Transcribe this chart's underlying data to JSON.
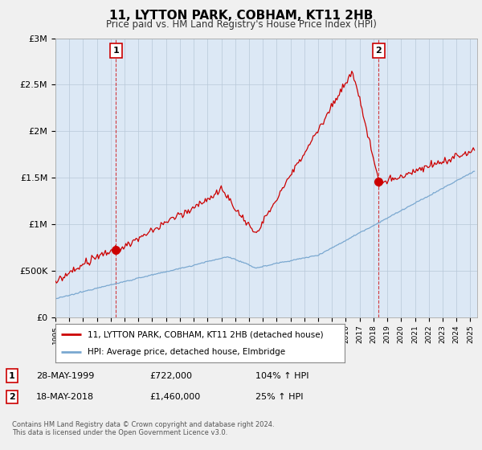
{
  "title": "11, LYTTON PARK, COBHAM, KT11 2HB",
  "subtitle": "Price paid vs. HM Land Registry's House Price Index (HPI)",
  "ylabel_ticks": [
    "£0",
    "£500K",
    "£1M",
    "£1.5M",
    "£2M",
    "£2.5M",
    "£3M"
  ],
  "ytick_values": [
    0,
    500000,
    1000000,
    1500000,
    2000000,
    2500000,
    3000000
  ],
  "ylim": [
    0,
    3000000
  ],
  "xlim_start": 1995.0,
  "xlim_end": 2025.5,
  "sale1_date": 1999.38,
  "sale1_price": 722000,
  "sale2_date": 2018.37,
  "sale2_price": 1460000,
  "property_color": "#cc0000",
  "hpi_color": "#7aa8d0",
  "vline_color": "#cc0000",
  "legend_property": "11, LYTTON PARK, COBHAM, KT11 2HB (detached house)",
  "legend_hpi": "HPI: Average price, detached house, Elmbridge",
  "annotation1_date": "28-MAY-1999",
  "annotation1_price": "£722,000",
  "annotation1_hpi": "104% ↑ HPI",
  "annotation2_date": "18-MAY-2018",
  "annotation2_price": "£1,460,000",
  "annotation2_hpi": "25% ↑ HPI",
  "footnote": "Contains HM Land Registry data © Crown copyright and database right 2024.\nThis data is licensed under the Open Government Licence v3.0.",
  "background_color": "#f0f0f0",
  "plot_background": "#dce8f5"
}
